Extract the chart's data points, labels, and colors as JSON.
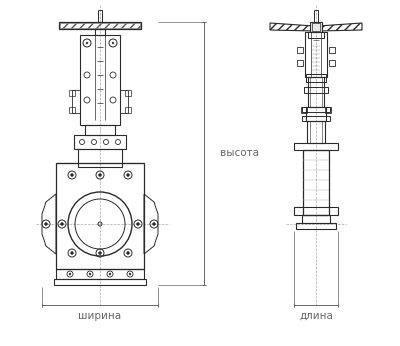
{
  "bg_color": "#ffffff",
  "line_color": "#2a2a2a",
  "dim_line_color": "#666666",
  "label_color": "#555555",
  "figsize": [
    4.0,
    3.46
  ],
  "dpi": 100,
  "labels": {
    "shirina": "ширина",
    "vysota": "высота",
    "dlina": "длина"
  }
}
